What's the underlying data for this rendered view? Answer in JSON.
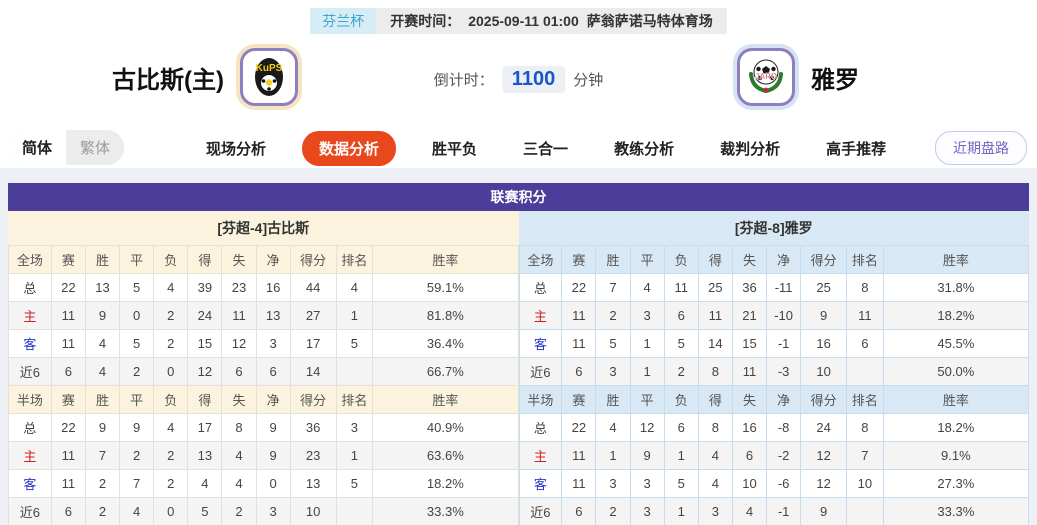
{
  "header": {
    "league_badge": "芬兰杯",
    "kickoff_label": "开赛时间：",
    "kickoff_time": "2025-09-11 01:00",
    "venue": "萨翁萨诺马特体育场",
    "home_team": "古比斯(主)",
    "away_team": "雅罗",
    "home_logo_text": "KuPS",
    "away_logo_text": "JARO",
    "countdown_label": "倒计时：",
    "countdown_value": "1100",
    "countdown_unit": "分钟"
  },
  "nav": {
    "lang_options": [
      {
        "label": "简体",
        "active": true
      },
      {
        "label": "繁体",
        "active": false
      }
    ],
    "tabs": [
      {
        "label": "现场分析",
        "active": false
      },
      {
        "label": "数据分析",
        "active": true
      },
      {
        "label": "胜平负",
        "active": false
      },
      {
        "label": "三合一",
        "active": false
      },
      {
        "label": "教练分析",
        "active": false
      },
      {
        "label": "裁判分析",
        "active": false
      },
      {
        "label": "高手推荐",
        "active": false
      }
    ],
    "recent_button": "近期盘路"
  },
  "table": {
    "title": "联赛积分",
    "home": {
      "team_header": "[芬超-4]古比斯",
      "sections": [
        {
          "header": [
            "全场",
            "赛",
            "胜",
            "平",
            "负",
            "得",
            "失",
            "净",
            "得分",
            "排名",
            "胜率"
          ],
          "rows": [
            [
              "总",
              "22",
              "13",
              "5",
              "4",
              "39",
              "23",
              "16",
              "44",
              "4",
              "59.1%"
            ],
            [
              "主",
              "11",
              "9",
              "0",
              "2",
              "24",
              "11",
              "13",
              "27",
              "1",
              "81.8%"
            ],
            [
              "客",
              "11",
              "4",
              "5",
              "2",
              "15",
              "12",
              "3",
              "17",
              "5",
              "36.4%"
            ],
            [
              "近6",
              "6",
              "4",
              "2",
              "0",
              "12",
              "6",
              "6",
              "14",
              "",
              "66.7%"
            ]
          ]
        },
        {
          "header": [
            "半场",
            "赛",
            "胜",
            "平",
            "负",
            "得",
            "失",
            "净",
            "得分",
            "排名",
            "胜率"
          ],
          "rows": [
            [
              "总",
              "22",
              "9",
              "9",
              "4",
              "17",
              "8",
              "9",
              "36",
              "3",
              "40.9%"
            ],
            [
              "主",
              "11",
              "7",
              "2",
              "2",
              "13",
              "4",
              "9",
              "23",
              "1",
              "63.6%"
            ],
            [
              "客",
              "11",
              "2",
              "7",
              "2",
              "4",
              "4",
              "0",
              "13",
              "5",
              "18.2%"
            ],
            [
              "近6",
              "6",
              "2",
              "4",
              "0",
              "5",
              "2",
              "3",
              "10",
              "",
              "33.3%"
            ]
          ]
        }
      ]
    },
    "away": {
      "team_header": "[芬超-8]雅罗",
      "sections": [
        {
          "header": [
            "全场",
            "赛",
            "胜",
            "平",
            "负",
            "得",
            "失",
            "净",
            "得分",
            "排名",
            "胜率"
          ],
          "rows": [
            [
              "总",
              "22",
              "7",
              "4",
              "11",
              "25",
              "36",
              "-11",
              "25",
              "8",
              "31.8%"
            ],
            [
              "主",
              "11",
              "2",
              "3",
              "6",
              "11",
              "21",
              "-10",
              "9",
              "11",
              "18.2%"
            ],
            [
              "客",
              "11",
              "5",
              "1",
              "5",
              "14",
              "15",
              "-1",
              "16",
              "6",
              "45.5%"
            ],
            [
              "近6",
              "6",
              "3",
              "1",
              "2",
              "8",
              "11",
              "-3",
              "10",
              "",
              "50.0%"
            ]
          ]
        },
        {
          "header": [
            "半场",
            "赛",
            "胜",
            "平",
            "负",
            "得",
            "失",
            "净",
            "得分",
            "排名",
            "胜率"
          ],
          "rows": [
            [
              "总",
              "22",
              "4",
              "12",
              "6",
              "8",
              "16",
              "-8",
              "24",
              "8",
              "18.2%"
            ],
            [
              "主",
              "11",
              "1",
              "9",
              "1",
              "4",
              "6",
              "-2",
              "12",
              "7",
              "9.1%"
            ],
            [
              "客",
              "11",
              "3",
              "3",
              "5",
              "4",
              "10",
              "-6",
              "12",
              "10",
              "27.3%"
            ],
            [
              "近6",
              "6",
              "2",
              "3",
              "1",
              "3",
              "4",
              "-1",
              "9",
              "",
              "33.3%"
            ]
          ]
        }
      ]
    }
  },
  "colors": {
    "title_bg": "#4b3d99",
    "home_bg": "#fcf3de",
    "away_bg": "#d8e8f4",
    "tab_active_bg": "#e8481c",
    "badge_bg": "#d6edf6",
    "badge_fg": "#3aa4cc",
    "countdown_fg": "#1b55c8",
    "recent_fg": "#7466c3",
    "label_home": "#cc2222",
    "label_away": "#2836cc",
    "logo_border": "#8d7fc0"
  }
}
